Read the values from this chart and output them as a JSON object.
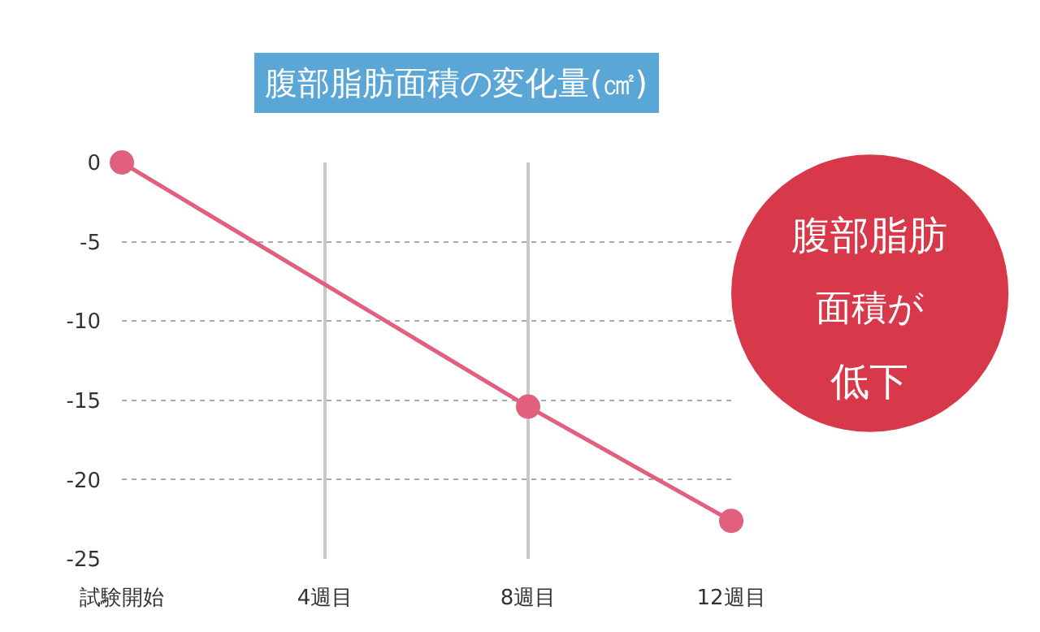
{
  "chart_data": {
    "type": "line",
    "title": "腹部脂肪面積の変化量(㎠)",
    "categories": [
      "試験開始",
      "4週目",
      "8週目",
      "12週目"
    ],
    "series": [
      {
        "color": "#e0607e",
        "values": [
          0,
          null,
          -15.4,
          -22.6
        ]
      }
    ],
    "ylim": [
      -25,
      0
    ],
    "yticks": [
      0,
      -5,
      -10,
      -15,
      -20,
      -25
    ],
    "grid": true,
    "marker": "circle",
    "line_style": "solid",
    "annotations": [
      "腹部脂肪",
      "面積が",
      "低下"
    ]
  }
}
